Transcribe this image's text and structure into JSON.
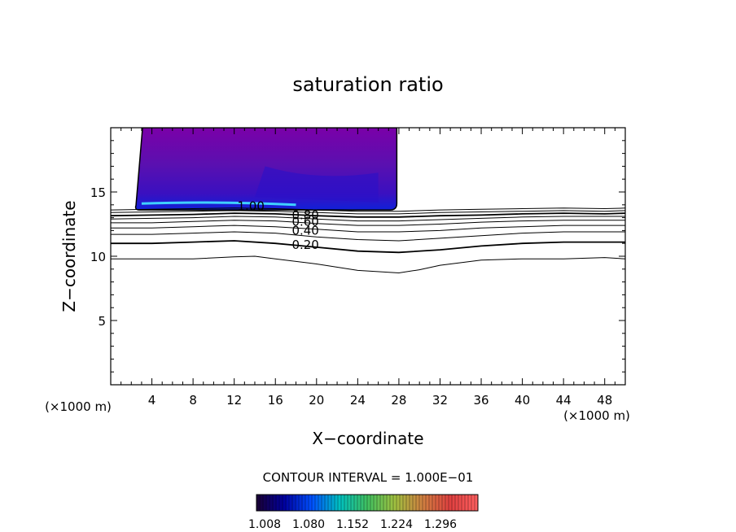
{
  "chart_data": {
    "type": "contour",
    "title": "saturation ratio",
    "xlabel": "X−coordinate",
    "ylabel": "Z−coordinate",
    "x_unit_left": "(×1000 m)",
    "x_unit_right": "(×1000 m)",
    "xlim": [
      0,
      50
    ],
    "ylim": [
      0,
      20
    ],
    "x_ticks": [
      4,
      8,
      12,
      16,
      20,
      24,
      28,
      32,
      36,
      40,
      44,
      48
    ],
    "y_ticks": [
      5,
      10,
      15
    ],
    "contour_interval_text": "CONTOUR INTERVAL = 1.000E−01",
    "contour_labels": [
      {
        "text": "1.00",
        "x": 12.3,
        "z": 13.9
      },
      {
        "text": "0.80",
        "x": 17.6,
        "z": 13.2
      },
      {
        "text": "0.60",
        "x": 17.6,
        "z": 12.7
      },
      {
        "text": "0.40",
        "x": 17.6,
        "z": 12.0
      },
      {
        "text": "0.20",
        "x": 17.6,
        "z": 10.9
      }
    ],
    "contour_lines": [
      {
        "level": 0.2,
        "points": [
          [
            0,
            9.8
          ],
          [
            4,
            9.8
          ],
          [
            8,
            9.8
          ],
          [
            12,
            9.95
          ],
          [
            14,
            10.0
          ],
          [
            16,
            9.8
          ],
          [
            20,
            9.4
          ],
          [
            24,
            8.9
          ],
          [
            28,
            8.7
          ],
          [
            30,
            8.95
          ],
          [
            32,
            9.3
          ],
          [
            36,
            9.7
          ],
          [
            40,
            9.8
          ],
          [
            44,
            9.8
          ],
          [
            48,
            9.9
          ],
          [
            50,
            9.8
          ]
        ]
      },
      {
        "level": 0.3,
        "points": [
          [
            0,
            11.0
          ],
          [
            4,
            11.0
          ],
          [
            8,
            11.1
          ],
          [
            12,
            11.2
          ],
          [
            16,
            11.0
          ],
          [
            20,
            10.7
          ],
          [
            24,
            10.4
          ],
          [
            28,
            10.3
          ],
          [
            32,
            10.5
          ],
          [
            36,
            10.8
          ],
          [
            40,
            11.0
          ],
          [
            44,
            11.1
          ],
          [
            48,
            11.1
          ],
          [
            50,
            11.1
          ]
        ]
      },
      {
        "level": 0.4,
        "points": [
          [
            0,
            11.7
          ],
          [
            4,
            11.7
          ],
          [
            8,
            11.8
          ],
          [
            12,
            11.9
          ],
          [
            16,
            11.8
          ],
          [
            20,
            11.5
          ],
          [
            24,
            11.3
          ],
          [
            28,
            11.2
          ],
          [
            32,
            11.4
          ],
          [
            36,
            11.6
          ],
          [
            40,
            11.8
          ],
          [
            44,
            11.9
          ],
          [
            48,
            11.9
          ],
          [
            50,
            11.9
          ]
        ]
      },
      {
        "level": 0.5,
        "points": [
          [
            0,
            12.2
          ],
          [
            4,
            12.2
          ],
          [
            8,
            12.3
          ],
          [
            12,
            12.4
          ],
          [
            16,
            12.3
          ],
          [
            20,
            12.1
          ],
          [
            24,
            11.9
          ],
          [
            28,
            11.9
          ],
          [
            32,
            12.0
          ],
          [
            36,
            12.2
          ],
          [
            40,
            12.3
          ],
          [
            44,
            12.4
          ],
          [
            48,
            12.4
          ],
          [
            50,
            12.4
          ]
        ]
      },
      {
        "level": 0.6,
        "points": [
          [
            0,
            12.6
          ],
          [
            4,
            12.6
          ],
          [
            8,
            12.7
          ],
          [
            12,
            12.8
          ],
          [
            16,
            12.75
          ],
          [
            20,
            12.55
          ],
          [
            24,
            12.4
          ],
          [
            28,
            12.4
          ],
          [
            32,
            12.5
          ],
          [
            36,
            12.65
          ],
          [
            40,
            12.75
          ],
          [
            44,
            12.8
          ],
          [
            48,
            12.8
          ],
          [
            50,
            12.8
          ]
        ]
      },
      {
        "level": 0.7,
        "points": [
          [
            0,
            12.9
          ],
          [
            4,
            12.95
          ],
          [
            8,
            13.0
          ],
          [
            12,
            13.1
          ],
          [
            16,
            13.05
          ],
          [
            20,
            12.9
          ],
          [
            24,
            12.75
          ],
          [
            28,
            12.75
          ],
          [
            32,
            12.85
          ],
          [
            36,
            12.95
          ],
          [
            40,
            13.05
          ],
          [
            44,
            13.1
          ],
          [
            48,
            13.1
          ],
          [
            50,
            13.1
          ]
        ]
      },
      {
        "level": 0.8,
        "points": [
          [
            0,
            13.15
          ],
          [
            4,
            13.2
          ],
          [
            8,
            13.25
          ],
          [
            12,
            13.35
          ],
          [
            16,
            13.3
          ],
          [
            20,
            13.15
          ],
          [
            24,
            13.05
          ],
          [
            28,
            13.05
          ],
          [
            32,
            13.15
          ],
          [
            36,
            13.2
          ],
          [
            40,
            13.3
          ],
          [
            44,
            13.35
          ],
          [
            48,
            13.3
          ],
          [
            50,
            13.35
          ]
        ]
      },
      {
        "level": 0.9,
        "points": [
          [
            0,
            13.4
          ],
          [
            4,
            13.45
          ],
          [
            8,
            13.5
          ],
          [
            12,
            13.55
          ],
          [
            16,
            13.5
          ],
          [
            20,
            13.4
          ],
          [
            24,
            13.3
          ],
          [
            28,
            13.3
          ],
          [
            32,
            13.4
          ],
          [
            36,
            13.45
          ],
          [
            40,
            13.5
          ],
          [
            44,
            13.55
          ],
          [
            48,
            13.5
          ],
          [
            50,
            13.55
          ]
        ]
      },
      {
        "level": 1.0,
        "points": [
          [
            0,
            13.6
          ],
          [
            4,
            13.65
          ],
          [
            8,
            13.7
          ],
          [
            12,
            13.75
          ],
          [
            16,
            13.7
          ],
          [
            20,
            13.6
          ],
          [
            24,
            13.5
          ],
          [
            28,
            13.5
          ],
          [
            32,
            13.6
          ],
          [
            36,
            13.65
          ],
          [
            40,
            13.7
          ],
          [
            44,
            13.75
          ],
          [
            48,
            13.7
          ],
          [
            50,
            13.75
          ]
        ]
      }
    ],
    "filled_region": {
      "x_range": [
        2.3,
        27.8
      ],
      "z_range": [
        13.6,
        20
      ]
    },
    "colorbar": {
      "ticks": [
        "1.008",
        "1.080",
        "1.152",
        "1.224",
        "1.296"
      ],
      "colors": [
        "#1a0033",
        "#0000a0",
        "#0050ff",
        "#00c0c0",
        "#40c060",
        "#a0c040",
        "#d08040",
        "#e04040",
        "#ff6060"
      ]
    }
  }
}
